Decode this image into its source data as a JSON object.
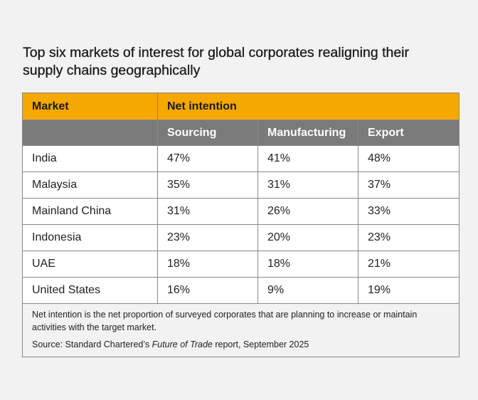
{
  "title": "Top six markets of interest for global corporates realigning their supply chains geographically",
  "table": {
    "header_market": "Market",
    "header_group": "Net intention",
    "subheaders": [
      "Sourcing",
      "Manufacturing",
      "Export"
    ],
    "rows": [
      {
        "market": "India",
        "sourcing": "47%",
        "manufacturing": "41%",
        "export": "48%"
      },
      {
        "market": "Malaysia",
        "sourcing": "35%",
        "manufacturing": "31%",
        "export": "37%"
      },
      {
        "market": "Mainland China",
        "sourcing": "31%",
        "manufacturing": "26%",
        "export": "33%"
      },
      {
        "market": "Indonesia",
        "sourcing": "23%",
        "manufacturing": "20%",
        "export": "23%"
      },
      {
        "market": "UAE",
        "sourcing": "18%",
        "manufacturing": "18%",
        "export": "21%"
      },
      {
        "market": "United States",
        "sourcing": "16%",
        "manufacturing": "9%",
        "export": "19%"
      }
    ]
  },
  "notes": {
    "definition": "Net intention is the net proportion of surveyed corporates that are planning to increase or maintain activities with the target market.",
    "source_prefix": "Source: Standard Chartered’s ",
    "source_title": "Future of Trade",
    "source_suffix": " report, September 2025"
  },
  "colors": {
    "header_accent": "#f5a800",
    "subheader_gray": "#7a7a7a",
    "page_background": "#f2f2f2"
  }
}
